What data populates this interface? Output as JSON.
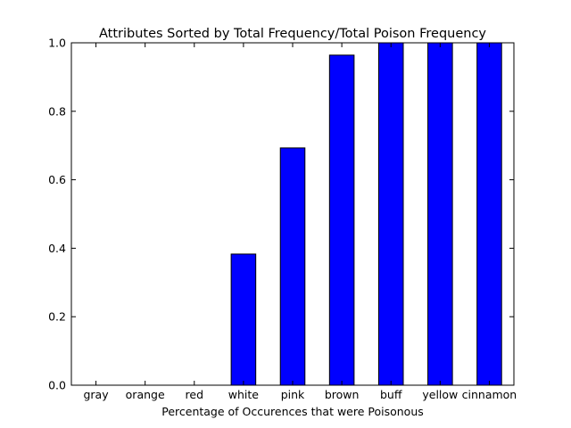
{
  "chart_data": {
    "type": "bar",
    "title": "Attributes Sorted by Total Frequency/Total Poison Frequency",
    "xlabel": "Percentage of Occurences that were Poisonous",
    "ylabel": "",
    "categories": [
      "gray",
      "orange",
      "red",
      "white",
      "pink",
      "brown",
      "buff",
      "yellow",
      "cinnamon"
    ],
    "values": [
      0.0,
      0.0,
      0.0,
      0.383,
      0.693,
      0.964,
      1.0,
      1.0,
      1.0
    ],
    "ylim": [
      0,
      1.0
    ],
    "yticks": [
      "0.0",
      "0.2",
      "0.4",
      "0.6",
      "0.8",
      "1.0"
    ],
    "grid": false,
    "legend": "none",
    "bar_color": "#0000ff",
    "edge_color": "#000000"
  }
}
